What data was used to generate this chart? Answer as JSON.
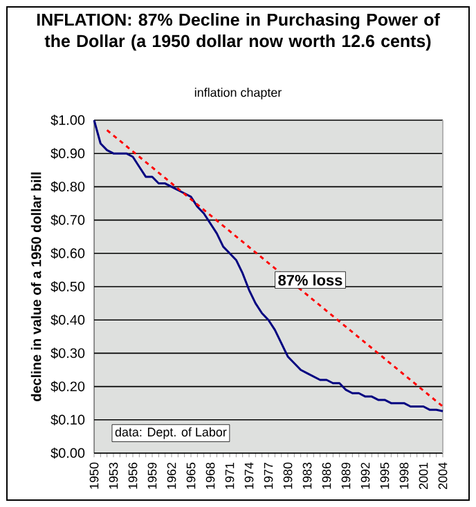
{
  "chart_data": {
    "type": "line",
    "title": "INFLATION: 87% Decline in Purchasing Power of the Dollar (a 1950 dollar now worth 12.6 cents)",
    "subtitle": "inflation chapter",
    "ylabel": "decline in value of a 1950 dollar bill",
    "categories": [
      "1950",
      null,
      null,
      "1953",
      null,
      null,
      "1956",
      null,
      null,
      "1959",
      null,
      null,
      "1962",
      null,
      null,
      "1965",
      null,
      null,
      "1968",
      null,
      null,
      "1971",
      null,
      null,
      "1974",
      null,
      null,
      "1977",
      null,
      null,
      "1980",
      null,
      null,
      "1983",
      null,
      null,
      "1986",
      null,
      null,
      "1989",
      null,
      null,
      "1992",
      null,
      null,
      "1995",
      null,
      null,
      "1998",
      null,
      null,
      "2001",
      null,
      null,
      "2004"
    ],
    "series": [
      {
        "color": "#000080",
        "line_style": "solid",
        "values": [
          1.0,
          0.93,
          0.91,
          0.9,
          0.9,
          0.9,
          0.89,
          0.86,
          0.83,
          0.83,
          0.81,
          0.81,
          0.8,
          0.79,
          0.78,
          0.77,
          0.74,
          0.72,
          0.69,
          0.66,
          0.62,
          0.6,
          0.58,
          0.54,
          0.49,
          0.45,
          0.42,
          0.4,
          0.37,
          0.33,
          0.29,
          0.27,
          0.25,
          0.24,
          0.23,
          0.22,
          0.22,
          0.21,
          0.21,
          0.19,
          0.18,
          0.18,
          0.17,
          0.17,
          0.16,
          0.16,
          0.15,
          0.15,
          0.15,
          0.14,
          0.14,
          0.14,
          0.13,
          0.13,
          0.126
        ]
      },
      {
        "color": "#ff0000",
        "line_style": "dashed",
        "values": [
          null,
          null,
          0.97,
          null,
          null,
          null,
          null,
          null,
          null,
          null,
          null,
          null,
          null,
          null,
          null,
          null,
          null,
          null,
          null,
          null,
          null,
          null,
          null,
          null,
          null,
          null,
          null,
          null,
          null,
          null,
          null,
          null,
          null,
          null,
          null,
          null,
          null,
          null,
          null,
          null,
          null,
          null,
          null,
          null,
          null,
          null,
          null,
          null,
          null,
          null,
          null,
          null,
          null,
          null,
          0.14
        ]
      }
    ],
    "ylim": [
      0,
      1
    ],
    "yticks": [
      {
        "value": 0,
        "label": "$0.00"
      },
      {
        "value": 0.1,
        "label": "$0.10"
      },
      {
        "value": 0.2,
        "label": "$0.20"
      },
      {
        "value": 0.3,
        "label": "$0.30"
      },
      {
        "value": 0.4,
        "label": "$0.40"
      },
      {
        "value": 0.5,
        "label": "$0.50"
      },
      {
        "value": 0.6,
        "label": "$0.60"
      },
      {
        "value": 0.7,
        "label": "$0.70"
      },
      {
        "value": 0.8,
        "label": "$0.80"
      },
      {
        "value": 0.9,
        "label": "$0.90"
      },
      {
        "value": 1,
        "label": "$1.00"
      }
    ],
    "grid": "y",
    "annotations": [
      "87% loss",
      "data: Dept. of Labor"
    ]
  }
}
